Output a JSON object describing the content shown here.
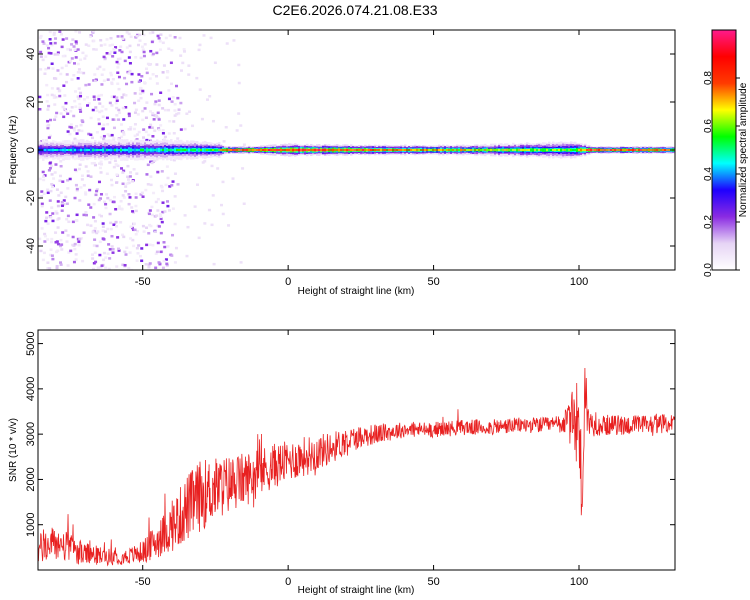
{
  "title": "C2E6.2026.074.21.08.E33",
  "chart_data": [
    {
      "type": "heatmap",
      "xlabel": "Height of straight line (km)",
      "ylabel": "Frequency (Hz)",
      "xlim": [
        -86,
        133
      ],
      "ylim": [
        -50,
        50
      ],
      "xticks": [
        -50,
        0,
        50,
        100
      ],
      "yticks": [
        -40,
        -20,
        0,
        20,
        40
      ],
      "colorbar": {
        "label": "Normalized spectral amplitude",
        "range": [
          0,
          1
        ],
        "ticks": [
          0.0,
          0.2,
          0.4,
          0.6,
          0.8
        ],
        "tick_labels": [
          "0.0",
          "0.2",
          "0.4",
          "0.6",
          "0.8"
        ],
        "colormap": [
          "#ffffff",
          "#e6d4f5",
          "#8a2be2",
          "#1e00ff",
          "#00ffff",
          "#00ff00",
          "#ffff00",
          "#ff3b00",
          "#ff0000",
          "#ff1a8c"
        ]
      },
      "ridge": [
        {
          "x": -86,
          "halfwidth_hz": 4.0,
          "peak_amplitude": 0.4
        },
        {
          "x": -60,
          "halfwidth_hz": 4.0,
          "peak_amplitude": 0.45
        },
        {
          "x": -40,
          "halfwidth_hz": 4.0,
          "peak_amplitude": 0.5
        },
        {
          "x": -24,
          "halfwidth_hz": 3.0,
          "peak_amplitude": 0.55
        },
        {
          "x": -22,
          "halfwidth_hz": 1.5,
          "peak_amplitude": 0.9
        },
        {
          "x": -12,
          "halfwidth_hz": 1.5,
          "peak_amplitude": 0.9
        },
        {
          "x": 0,
          "halfwidth_hz": 2.5,
          "peak_amplitude": 0.85
        },
        {
          "x": 25,
          "halfwidth_hz": 2.0,
          "peak_amplitude": 0.85
        },
        {
          "x": 60,
          "halfwidth_hz": 2.0,
          "peak_amplitude": 0.7
        },
        {
          "x": 98,
          "halfwidth_hz": 3.5,
          "peak_amplitude": 0.55
        },
        {
          "x": 104,
          "halfwidth_hz": 1.5,
          "peak_amplitude": 0.95
        },
        {
          "x": 133,
          "halfwidth_hz": 1.5,
          "peak_amplitude": 0.85
        }
      ],
      "scatter_region": {
        "x": [
          -86,
          -40
        ],
        "frequency_range_hz": [
          -50,
          50
        ],
        "amplitude_range": [
          0.05,
          0.25
        ]
      }
    },
    {
      "type": "line",
      "xlabel": "Height of straight line (km)",
      "ylabel": "SNR (10 * v/v)",
      "xlim": [
        -86,
        133
      ],
      "ylim": [
        0,
        5300
      ],
      "xticks": [
        -50,
        0,
        50,
        100
      ],
      "yticks": [
        1000,
        2000,
        3000,
        4000,
        5000
      ],
      "color": "#e82020",
      "series": [
        {
          "x": [
            -86,
            -80,
            -70,
            -60,
            -55,
            -50,
            -45,
            -40,
            -35,
            -30,
            -25,
            -20,
            -15,
            -10,
            -5,
            0,
            5,
            10,
            15,
            20,
            25,
            30,
            35,
            40,
            50,
            60,
            70,
            80,
            90,
            95,
            98,
            100,
            101,
            102,
            103,
            105,
            110,
            120,
            133
          ],
          "values": [
            450,
            600,
            350,
            280,
            300,
            400,
            650,
            950,
            1350,
            1650,
            1800,
            1900,
            2000,
            2150,
            2300,
            2400,
            2500,
            2600,
            2700,
            2850,
            2950,
            3000,
            3050,
            3100,
            3100,
            3150,
            3150,
            3200,
            3200,
            3250,
            3300,
            3300,
            1400,
            4200,
            3300,
            3200,
            3200,
            3200,
            3250
          ],
          "noise_amplitude": [
            700,
            800,
            500,
            350,
            350,
            500,
            800,
            1100,
            1500,
            1600,
            1400,
            1300,
            1200,
            1100,
            1000,
            900,
            900,
            800,
            700,
            600,
            500,
            450,
            400,
            350,
            350,
            350,
            350,
            350,
            350,
            500,
            1400,
            2500,
            2200,
            2000,
            700,
            500,
            450,
            450,
            400
          ]
        }
      ]
    }
  ]
}
